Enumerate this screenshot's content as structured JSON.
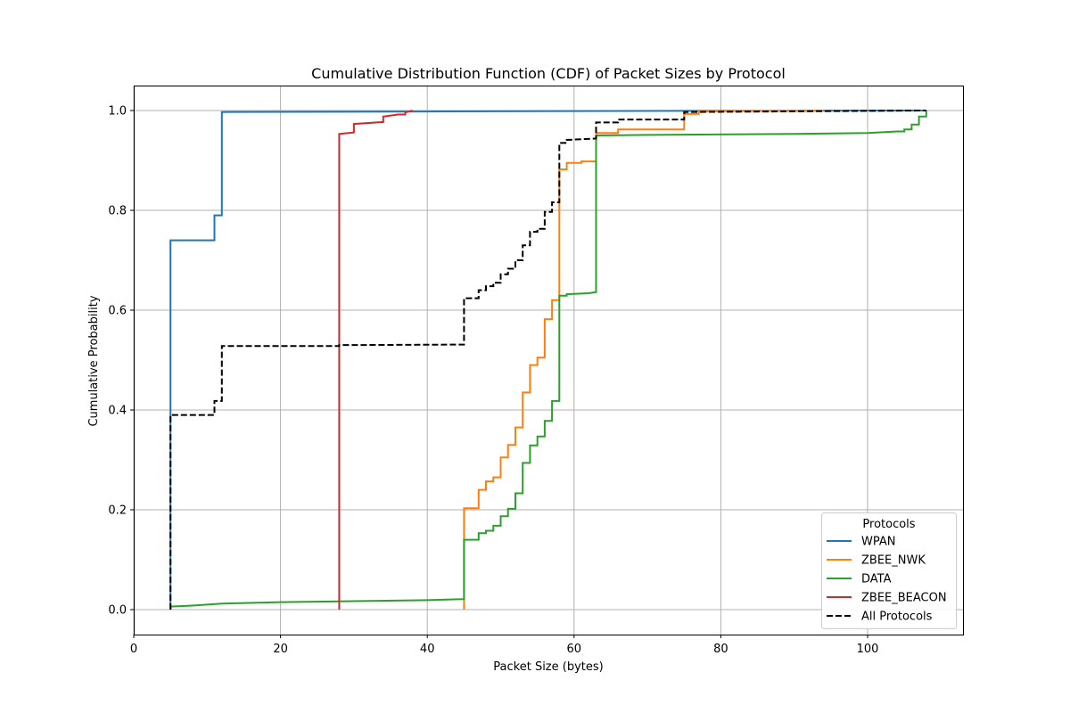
{
  "chart_data": {
    "type": "line",
    "title": "Cumulative Distribution Function (CDF) of Packet Sizes by Protocol",
    "xlabel": "Packet Size (bytes)",
    "ylabel": "Cumulative Probability",
    "xlim": [
      0,
      113
    ],
    "ylim": [
      -0.05,
      1.05
    ],
    "xticks": [
      0,
      20,
      40,
      60,
      80,
      100
    ],
    "yticks": [
      0.0,
      0.2,
      0.4,
      0.6,
      0.8,
      1.0
    ],
    "grid": true,
    "step": true,
    "legend": {
      "title": "Protocols",
      "placement": "lower-right"
    },
    "series": [
      {
        "name": "WPAN",
        "color": "#1f77b4",
        "dash": "solid",
        "points": [
          [
            5,
            0.0
          ],
          [
            5,
            0.74
          ],
          [
            11,
            0.74
          ],
          [
            11,
            0.79
          ],
          [
            12,
            0.79
          ],
          [
            12,
            0.997
          ],
          [
            40,
            0.998
          ],
          [
            60,
            0.999
          ],
          [
            108,
            1.0
          ]
        ]
      },
      {
        "name": "ZBEE_NWK",
        "color": "#ff7f0e",
        "dash": "solid",
        "points": [
          [
            45,
            0.0
          ],
          [
            45,
            0.203
          ],
          [
            47,
            0.203
          ],
          [
            47,
            0.24
          ],
          [
            48,
            0.24
          ],
          [
            48,
            0.257
          ],
          [
            49,
            0.257
          ],
          [
            49,
            0.265
          ],
          [
            50,
            0.265
          ],
          [
            50,
            0.305
          ],
          [
            51,
            0.305
          ],
          [
            51,
            0.33
          ],
          [
            52,
            0.33
          ],
          [
            52,
            0.365
          ],
          [
            53,
            0.365
          ],
          [
            53,
            0.435
          ],
          [
            54,
            0.435
          ],
          [
            54,
            0.49
          ],
          [
            55,
            0.49
          ],
          [
            55,
            0.505
          ],
          [
            56,
            0.505
          ],
          [
            56,
            0.582
          ],
          [
            57,
            0.582
          ],
          [
            57,
            0.62
          ],
          [
            58,
            0.62
          ],
          [
            58,
            0.882
          ],
          [
            59,
            0.882
          ],
          [
            59,
            0.895
          ],
          [
            61,
            0.895
          ],
          [
            61,
            0.898
          ],
          [
            63,
            0.898
          ],
          [
            63,
            0.955
          ],
          [
            66,
            0.955
          ],
          [
            66,
            0.962
          ],
          [
            75,
            0.962
          ],
          [
            75,
            0.993
          ],
          [
            77,
            0.993
          ],
          [
            77,
            0.998
          ],
          [
            94,
            1.0
          ]
        ]
      },
      {
        "name": "DATA",
        "color": "#2ca02c",
        "dash": "solid",
        "points": [
          [
            5,
            0.0
          ],
          [
            5,
            0.006
          ],
          [
            8,
            0.008
          ],
          [
            12,
            0.012
          ],
          [
            20,
            0.015
          ],
          [
            30,
            0.017
          ],
          [
            40,
            0.019
          ],
          [
            45,
            0.021
          ],
          [
            45,
            0.14
          ],
          [
            47,
            0.14
          ],
          [
            47,
            0.153
          ],
          [
            48,
            0.153
          ],
          [
            48,
            0.158
          ],
          [
            49,
            0.158
          ],
          [
            49,
            0.168
          ],
          [
            50,
            0.168
          ],
          [
            50,
            0.187
          ],
          [
            51,
            0.187
          ],
          [
            51,
            0.202
          ],
          [
            52,
            0.202
          ],
          [
            52,
            0.233
          ],
          [
            53,
            0.233
          ],
          [
            53,
            0.294
          ],
          [
            54,
            0.294
          ],
          [
            54,
            0.329
          ],
          [
            55,
            0.329
          ],
          [
            55,
            0.347
          ],
          [
            56,
            0.347
          ],
          [
            56,
            0.378
          ],
          [
            57,
            0.378
          ],
          [
            57,
            0.418
          ],
          [
            58,
            0.418
          ],
          [
            58,
            0.629
          ],
          [
            59,
            0.629
          ],
          [
            59,
            0.632
          ],
          [
            62,
            0.634
          ],
          [
            63,
            0.636
          ],
          [
            63,
            0.95
          ],
          [
            70,
            0.951
          ],
          [
            90,
            0.953
          ],
          [
            100,
            0.955
          ],
          [
            104,
            0.958
          ],
          [
            105,
            0.958
          ],
          [
            105,
            0.962
          ],
          [
            106,
            0.962
          ],
          [
            106,
            0.972
          ],
          [
            107,
            0.972
          ],
          [
            107,
            0.988
          ],
          [
            108,
            0.988
          ],
          [
            108,
            1.0
          ]
        ]
      },
      {
        "name": "ZBEE_BEACON",
        "color": "#d62728",
        "dash": "solid",
        "points": [
          [
            28,
            0.0
          ],
          [
            28,
            0.953
          ],
          [
            30,
            0.956
          ],
          [
            30,
            0.973
          ],
          [
            34,
            0.977
          ],
          [
            34,
            0.988
          ],
          [
            36,
            0.992
          ],
          [
            37,
            0.992
          ],
          [
            37,
            0.996
          ],
          [
            38,
            1.0
          ]
        ]
      },
      {
        "name": "All Protocols",
        "color": "#000000",
        "dash": "dashed",
        "points": [
          [
            5,
            0.0
          ],
          [
            5,
            0.39
          ],
          [
            11,
            0.39
          ],
          [
            11,
            0.418
          ],
          [
            12,
            0.418
          ],
          [
            12,
            0.528
          ],
          [
            28,
            0.528
          ],
          [
            28,
            0.53
          ],
          [
            45,
            0.531
          ],
          [
            45,
            0.624
          ],
          [
            47,
            0.624
          ],
          [
            47,
            0.64
          ],
          [
            48,
            0.64
          ],
          [
            48,
            0.648
          ],
          [
            49,
            0.648
          ],
          [
            49,
            0.655
          ],
          [
            50,
            0.655
          ],
          [
            50,
            0.672
          ],
          [
            51,
            0.672
          ],
          [
            51,
            0.683
          ],
          [
            52,
            0.683
          ],
          [
            52,
            0.7
          ],
          [
            53,
            0.7
          ],
          [
            53,
            0.73
          ],
          [
            54,
            0.73
          ],
          [
            54,
            0.757
          ],
          [
            55,
            0.757
          ],
          [
            55,
            0.763
          ],
          [
            56,
            0.763
          ],
          [
            56,
            0.797
          ],
          [
            57,
            0.797
          ],
          [
            57,
            0.816
          ],
          [
            58,
            0.816
          ],
          [
            58,
            0.935
          ],
          [
            59,
            0.935
          ],
          [
            59,
            0.941
          ],
          [
            63,
            0.944
          ],
          [
            63,
            0.976
          ],
          [
            66,
            0.976
          ],
          [
            66,
            0.982
          ],
          [
            75,
            0.982
          ],
          [
            75,
            0.997
          ],
          [
            108,
            1.0
          ]
        ]
      }
    ]
  }
}
